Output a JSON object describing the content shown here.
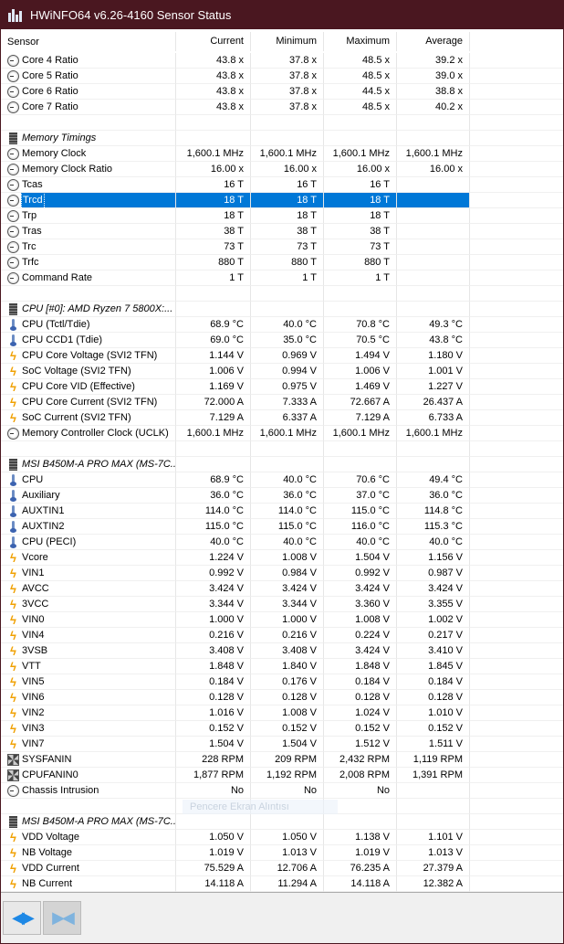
{
  "window": {
    "title": "HWiNFO64 v6.26-4160 Sensor Status"
  },
  "columns": [
    "Sensor",
    "Current",
    "Minimum",
    "Maximum",
    "Average"
  ],
  "overlay_text": "Pencere Ekran Alıntısı",
  "rows": [
    {
      "icon": "clock",
      "label": "Core 4 Ratio",
      "v": [
        "43.8 x",
        "37.8 x",
        "48.5 x",
        "39.2 x"
      ]
    },
    {
      "icon": "clock",
      "label": "Core 5 Ratio",
      "v": [
        "43.8 x",
        "37.8 x",
        "48.5 x",
        "39.0 x"
      ]
    },
    {
      "icon": "clock",
      "label": "Core 6 Ratio",
      "v": [
        "43.8 x",
        "37.8 x",
        "44.5 x",
        "38.8 x"
      ]
    },
    {
      "icon": "clock",
      "label": "Core 7 Ratio",
      "v": [
        "43.8 x",
        "37.8 x",
        "48.5 x",
        "40.2 x"
      ]
    },
    {
      "blank": true
    },
    {
      "icon": "chip",
      "label": "Memory Timings",
      "group": true
    },
    {
      "icon": "clock",
      "label": "Memory Clock",
      "v": [
        "1,600.1 MHz",
        "1,600.1 MHz",
        "1,600.1 MHz",
        "1,600.1 MHz"
      ]
    },
    {
      "icon": "clock",
      "label": "Memory Clock Ratio",
      "v": [
        "16.00 x",
        "16.00 x",
        "16.00 x",
        "16.00 x"
      ]
    },
    {
      "icon": "clock",
      "label": "Tcas",
      "v": [
        "16 T",
        "16 T",
        "16 T",
        ""
      ]
    },
    {
      "icon": "clock",
      "label": "Trcd",
      "v": [
        "18 T",
        "18 T",
        "18 T",
        ""
      ],
      "selected": true
    },
    {
      "icon": "clock",
      "label": "Trp",
      "v": [
        "18 T",
        "18 T",
        "18 T",
        ""
      ]
    },
    {
      "icon": "clock",
      "label": "Tras",
      "v": [
        "38 T",
        "38 T",
        "38 T",
        ""
      ]
    },
    {
      "icon": "clock",
      "label": "Trc",
      "v": [
        "73 T",
        "73 T",
        "73 T",
        ""
      ]
    },
    {
      "icon": "clock",
      "label": "Trfc",
      "v": [
        "880 T",
        "880 T",
        "880 T",
        ""
      ]
    },
    {
      "icon": "clock",
      "label": "Command Rate",
      "v": [
        "1 T",
        "1 T",
        "1 T",
        ""
      ]
    },
    {
      "blank": true
    },
    {
      "icon": "chip",
      "label": "CPU [#0]: AMD Ryzen 7 5800X:...",
      "group": true
    },
    {
      "icon": "thermo",
      "label": "CPU (Tctl/Tdie)",
      "v": [
        "68.9 °C",
        "40.0 °C",
        "70.8 °C",
        "49.3 °C"
      ]
    },
    {
      "icon": "thermo",
      "label": "CPU CCD1 (Tdie)",
      "v": [
        "69.0 °C",
        "35.0 °C",
        "70.5 °C",
        "43.8 °C"
      ]
    },
    {
      "icon": "bolt",
      "label": "CPU Core Voltage (SVI2 TFN)",
      "v": [
        "1.144 V",
        "0.969 V",
        "1.494 V",
        "1.180 V"
      ]
    },
    {
      "icon": "bolt",
      "label": "SoC Voltage (SVI2 TFN)",
      "v": [
        "1.006 V",
        "0.994 V",
        "1.006 V",
        "1.001 V"
      ]
    },
    {
      "icon": "bolt",
      "label": "CPU Core VID (Effective)",
      "v": [
        "1.169 V",
        "0.975 V",
        "1.469 V",
        "1.227 V"
      ]
    },
    {
      "icon": "bolt",
      "label": "CPU Core Current (SVI2 TFN)",
      "v": [
        "72.000 A",
        "7.333 A",
        "72.667 A",
        "26.437 A"
      ]
    },
    {
      "icon": "bolt",
      "label": "SoC Current (SVI2 TFN)",
      "v": [
        "7.129 A",
        "6.337 A",
        "7.129 A",
        "6.733 A"
      ]
    },
    {
      "icon": "clock",
      "label": "Memory Controller Clock (UCLK)",
      "v": [
        "1,600.1 MHz",
        "1,600.1 MHz",
        "1,600.1 MHz",
        "1,600.1 MHz"
      ]
    },
    {
      "blank": true
    },
    {
      "icon": "chip",
      "label": "MSI B450M-A PRO MAX (MS-7C...",
      "group": true
    },
    {
      "icon": "thermo",
      "label": "CPU",
      "v": [
        "68.9 °C",
        "40.0 °C",
        "70.6 °C",
        "49.4 °C"
      ]
    },
    {
      "icon": "thermo",
      "label": "Auxiliary",
      "v": [
        "36.0 °C",
        "36.0 °C",
        "37.0 °C",
        "36.0 °C"
      ]
    },
    {
      "icon": "thermo",
      "label": "AUXTIN1",
      "v": [
        "114.0 °C",
        "114.0 °C",
        "115.0 °C",
        "114.8 °C"
      ]
    },
    {
      "icon": "thermo",
      "label": "AUXTIN2",
      "v": [
        "115.0 °C",
        "115.0 °C",
        "116.0 °C",
        "115.3 °C"
      ]
    },
    {
      "icon": "thermo",
      "label": "CPU (PECI)",
      "v": [
        "40.0 °C",
        "40.0 °C",
        "40.0 °C",
        "40.0 °C"
      ]
    },
    {
      "icon": "bolt",
      "label": "Vcore",
      "v": [
        "1.224 V",
        "1.008 V",
        "1.504 V",
        "1.156 V"
      ]
    },
    {
      "icon": "bolt",
      "label": "VIN1",
      "v": [
        "0.992 V",
        "0.984 V",
        "0.992 V",
        "0.987 V"
      ]
    },
    {
      "icon": "bolt",
      "label": "AVCC",
      "v": [
        "3.424 V",
        "3.424 V",
        "3.424 V",
        "3.424 V"
      ]
    },
    {
      "icon": "bolt",
      "label": "3VCC",
      "v": [
        "3.344 V",
        "3.344 V",
        "3.360 V",
        "3.355 V"
      ]
    },
    {
      "icon": "bolt",
      "label": "VIN0",
      "v": [
        "1.000 V",
        "1.000 V",
        "1.008 V",
        "1.002 V"
      ]
    },
    {
      "icon": "bolt",
      "label": "VIN4",
      "v": [
        "0.216 V",
        "0.216 V",
        "0.224 V",
        "0.217 V"
      ]
    },
    {
      "icon": "bolt",
      "label": "3VSB",
      "v": [
        "3.408 V",
        "3.408 V",
        "3.424 V",
        "3.410 V"
      ]
    },
    {
      "icon": "bolt",
      "label": "VTT",
      "v": [
        "1.848 V",
        "1.840 V",
        "1.848 V",
        "1.845 V"
      ]
    },
    {
      "icon": "bolt",
      "label": "VIN5",
      "v": [
        "0.184 V",
        "0.176 V",
        "0.184 V",
        "0.184 V"
      ]
    },
    {
      "icon": "bolt",
      "label": "VIN6",
      "v": [
        "0.128 V",
        "0.128 V",
        "0.128 V",
        "0.128 V"
      ]
    },
    {
      "icon": "bolt",
      "label": "VIN2",
      "v": [
        "1.016 V",
        "1.008 V",
        "1.024 V",
        "1.010 V"
      ]
    },
    {
      "icon": "bolt",
      "label": "VIN3",
      "v": [
        "0.152 V",
        "0.152 V",
        "0.152 V",
        "0.152 V"
      ]
    },
    {
      "icon": "bolt",
      "label": "VIN7",
      "v": [
        "1.504 V",
        "1.504 V",
        "1.512 V",
        "1.511 V"
      ]
    },
    {
      "icon": "fan",
      "label": "SYSFANIN",
      "v": [
        "228 RPM",
        "209 RPM",
        "2,432 RPM",
        "1,119 RPM"
      ]
    },
    {
      "icon": "fan",
      "label": "CPUFANIN0",
      "v": [
        "1,877 RPM",
        "1,192 RPM",
        "2,008 RPM",
        "1,391 RPM"
      ]
    },
    {
      "icon": "clock",
      "label": "Chassis Intrusion",
      "v": [
        "No",
        "No",
        "No",
        ""
      ]
    },
    {
      "blank": true
    },
    {
      "icon": "chip",
      "label": "MSI B450M-A PRO MAX (MS-7C...",
      "group": true
    },
    {
      "icon": "bolt",
      "label": "VDD Voltage",
      "v": [
        "1.050 V",
        "1.050 V",
        "1.138 V",
        "1.101 V"
      ]
    },
    {
      "icon": "bolt",
      "label": "NB Voltage",
      "v": [
        "1.019 V",
        "1.013 V",
        "1.019 V",
        "1.013 V"
      ]
    },
    {
      "icon": "bolt",
      "label": "VDD Current",
      "v": [
        "75.529 A",
        "12.706 A",
        "76.235 A",
        "27.379 A"
      ]
    },
    {
      "icon": "bolt",
      "label": "NB Current",
      "v": [
        "14.118 A",
        "11.294 A",
        "14.118 A",
        "12.382 A"
      ]
    }
  ]
}
